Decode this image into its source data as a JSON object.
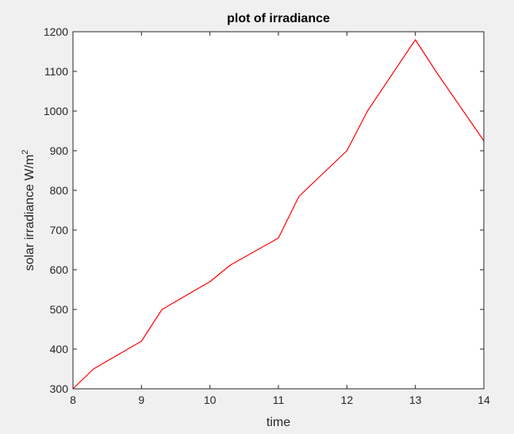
{
  "chart_data": {
    "type": "line",
    "title": "plot of irradiance",
    "xlabel": "time",
    "ylabel": {
      "text": "solar irradiance W/m",
      "superscript": "2"
    },
    "xlim": [
      8,
      14
    ],
    "ylim": [
      300,
      1200
    ],
    "x_ticks": [
      "8",
      "9",
      "10",
      "11",
      "12",
      "13",
      "14"
    ],
    "y_ticks": [
      "300",
      "400",
      "500",
      "600",
      "700",
      "800",
      "900",
      "1000",
      "1100",
      "1200"
    ],
    "grid": false,
    "series": [
      {
        "color": "#ff0000",
        "x": [
          8,
          8.3,
          9,
          9.3,
          10,
          10.3,
          11,
          11.3,
          12,
          12.3,
          13,
          13.3,
          14
        ],
        "y": [
          300,
          350,
          420,
          500,
          570,
          612,
          680,
          785,
          900,
          1000,
          1180,
          1100,
          925
        ]
      }
    ]
  }
}
